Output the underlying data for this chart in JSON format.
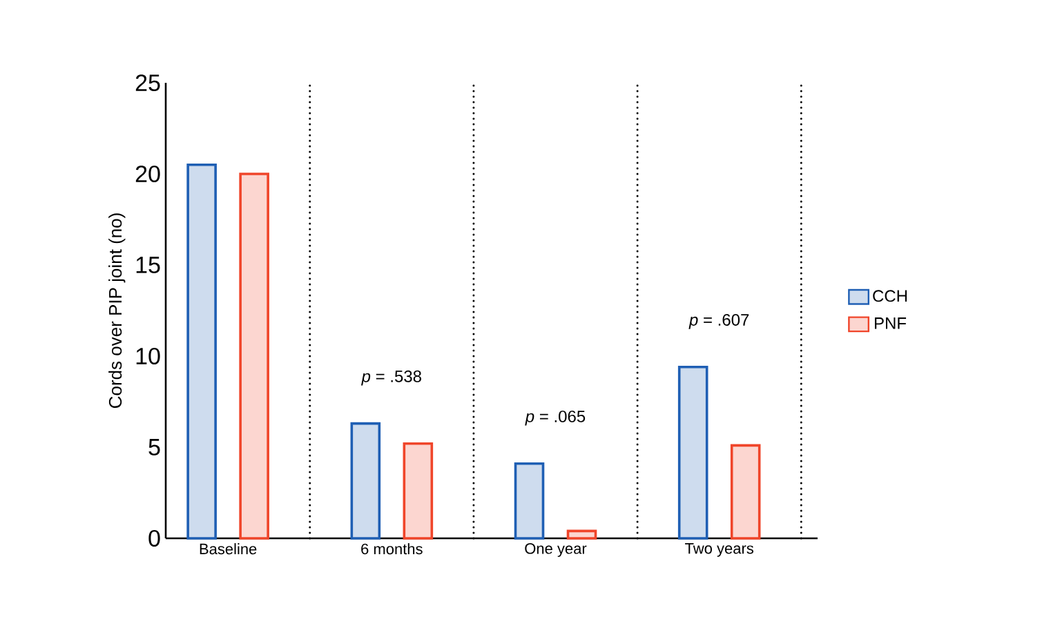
{
  "chart_data": {
    "type": "bar",
    "ylabel": "Cords over PIP joint (no)",
    "categories": [
      "Baseline",
      "6 months",
      "One year",
      "Two years"
    ],
    "series": [
      {
        "name": "CCH",
        "color": "#1f5fb4",
        "values": [
          20.5,
          6.3,
          4.1,
          9.4
        ]
      },
      {
        "name": "PNF",
        "color": "#f0452a",
        "values": [
          20,
          5.2,
          0.4,
          5.1
        ]
      }
    ],
    "ylim": [
      0,
      25
    ],
    "yticks": [
      0,
      5,
      10,
      15,
      20,
      25
    ],
    "annotations": [
      "*p* = .538",
      "*p* = .065",
      "*p* = .607"
    ],
    "grid": false,
    "legend": "right"
  }
}
